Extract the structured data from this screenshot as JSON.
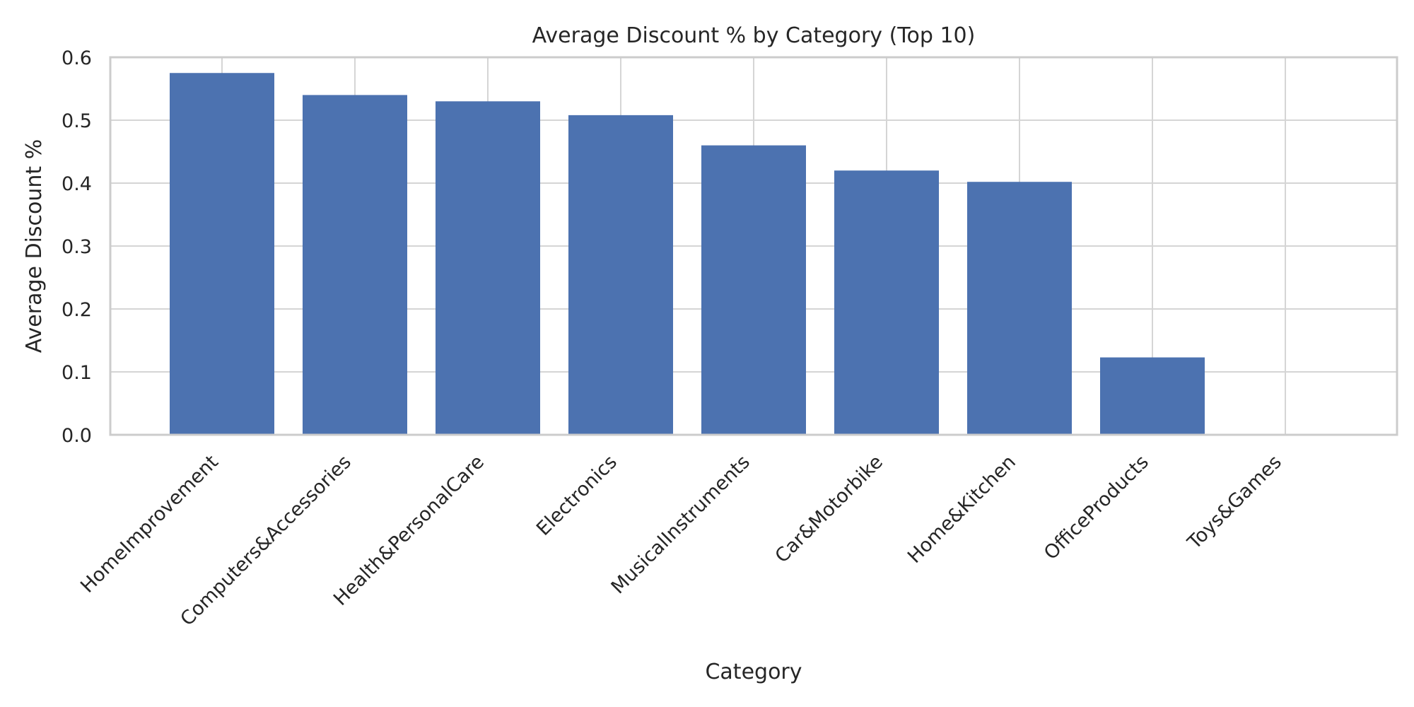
{
  "chart_data": {
    "type": "bar",
    "title": "Average Discount % by Category (Top 10)",
    "xlabel": "Category",
    "ylabel": "Average Discount %",
    "categories": [
      "HomeImprovement",
      "Computers&Accessories",
      "Health&PersonalCare",
      "Electronics",
      "MusicalInstruments",
      "Car&Motorbike",
      "Home&Kitchen",
      "OfficeProducts",
      "Toys&Games"
    ],
    "values": [
      0.575,
      0.54,
      0.53,
      0.508,
      0.46,
      0.42,
      0.402,
      0.123,
      0.0
    ],
    "ylim": [
      0,
      0.6
    ],
    "yticks": [
      "0.0",
      "0.1",
      "0.2",
      "0.3",
      "0.4",
      "0.5",
      "0.6"
    ],
    "ytick_values": [
      0,
      0.1,
      0.2,
      0.3,
      0.4,
      0.5,
      0.6
    ],
    "grid": true,
    "bar_color": "#4c72b0"
  }
}
